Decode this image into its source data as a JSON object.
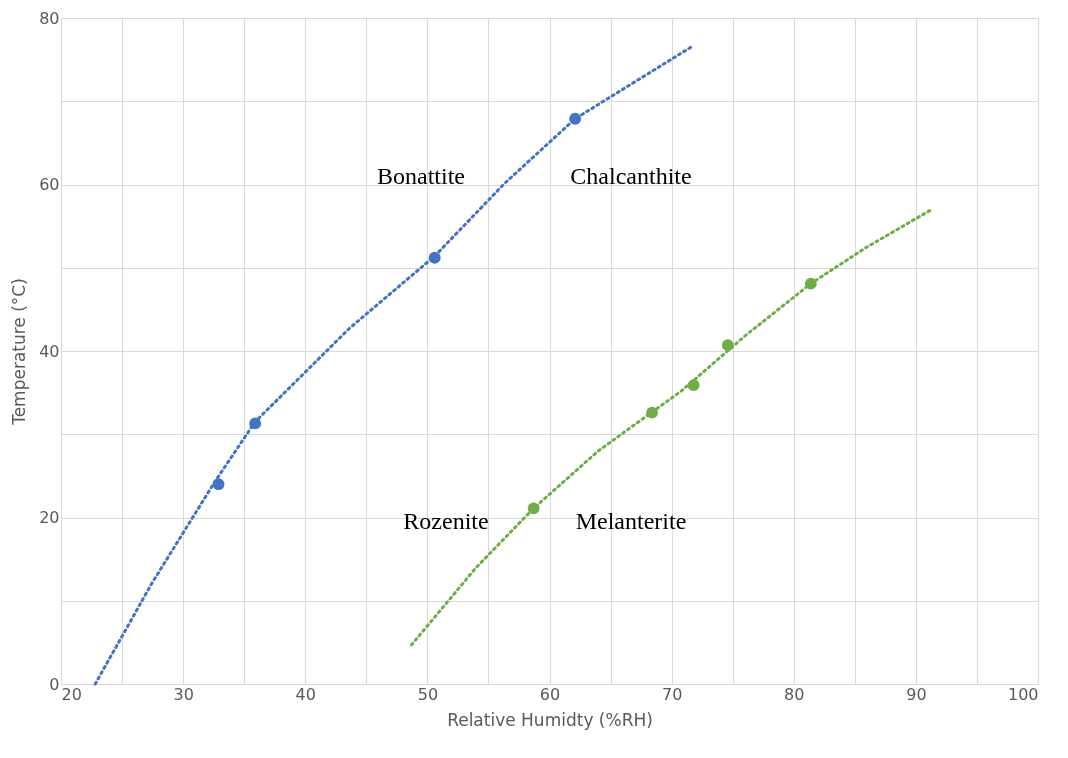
{
  "chart_data": {
    "type": "scatter",
    "xlabel": "Relative Humidty (%RH)",
    "ylabel": "Temperature (°C)",
    "xlim": [
      20,
      100
    ],
    "ylim": [
      0,
      80
    ],
    "xticks": [
      20,
      {
        "value": 25,
        "label": null
      },
      30,
      {
        "value": 35,
        "label": null
      },
      40,
      {
        "value": 45,
        "label": null
      },
      50,
      {
        "value": 55,
        "label": null
      },
      60,
      {
        "value": 65,
        "label": null
      },
      70,
      {
        "value": 75,
        "label": null
      },
      80,
      {
        "value": 85,
        "label": null
      },
      90,
      {
        "value": 95,
        "label": null
      },
      100
    ],
    "yticks": [
      0,
      {
        "value": 10,
        "label": null
      },
      20,
      {
        "value": 30,
        "label": null
      },
      40,
      {
        "value": 50,
        "label": null
      },
      60,
      {
        "value": 70,
        "label": null
      },
      80
    ],
    "grid": true,
    "series": [
      {
        "marker": "circle",
        "color": "#4472c4",
        "x": [
          32.9,
          35.9,
          50.6,
          62.1
        ],
        "values": [
          24.0,
          31.3,
          51.2,
          67.9
        ]
      },
      {
        "marker": "circle",
        "color": "#70ad47",
        "x": [
          58.7,
          68.4,
          71.8,
          74.6,
          81.4
        ],
        "values": [
          21.1,
          32.6,
          35.9,
          40.7,
          48.1
        ]
      },
      {
        "type": "line",
        "color": "#4472c4",
        "line_style": "dotted",
        "x": [
          22.8,
          27.4,
          32.6,
          35.9,
          43.6,
          50.6,
          56.3,
          62.1,
          71.7
        ],
        "values": [
          0,
          12,
          24.3,
          31.5,
          42.7,
          51.4,
          60.1,
          67.9,
          76.6
        ]
      },
      {
        "type": "line",
        "color": "#70ad47",
        "line_style": "dotted",
        "x": [
          48.7,
          54,
          58.7,
          64,
          70.8,
          76,
          81.4,
          86,
          91.3
        ],
        "values": [
          4.7,
          14,
          21.1,
          28,
          35.2,
          41.8,
          48.1,
          52.5,
          57.0
        ]
      }
    ],
    "annotations": [
      "Bonattite",
      "Chalcanthite",
      "Rozenite",
      "Melanterite"
    ]
  }
}
